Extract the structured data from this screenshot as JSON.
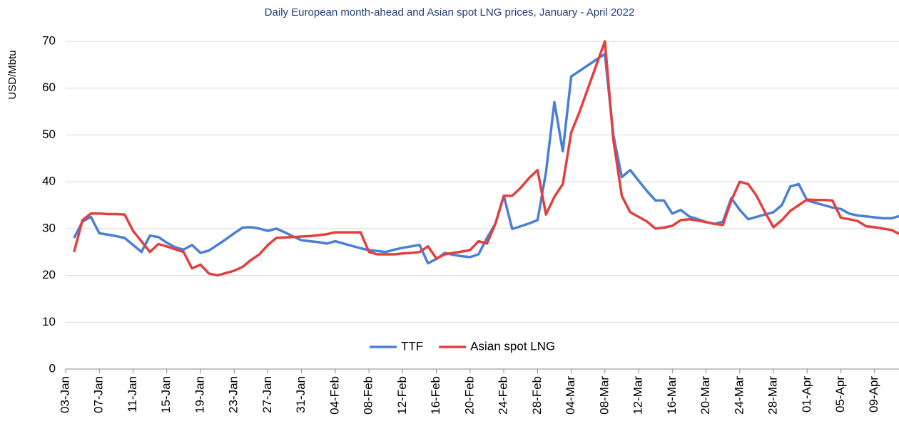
{
  "chart_data": {
    "type": "line",
    "title": "Daily European month-ahead and Asian spot LNG prices, January - April 2022",
    "y_label": "USD/Mbtu",
    "categories": [
      "03-Jan",
      null,
      null,
      null,
      "07-Jan",
      null,
      null,
      null,
      "11-Jan",
      null,
      null,
      null,
      "15-Jan",
      null,
      null,
      null,
      "19-Jan",
      null,
      null,
      null,
      "23-Jan",
      null,
      null,
      null,
      "27-Jan",
      null,
      null,
      null,
      "31-Jan",
      null,
      null,
      null,
      "04-Feb",
      null,
      null,
      null,
      "08-Feb",
      null,
      null,
      null,
      "12-Feb",
      null,
      null,
      null,
      "16-Feb",
      null,
      null,
      null,
      "20-Feb",
      null,
      null,
      null,
      "24-Feb",
      null,
      null,
      null,
      "28-Feb",
      null,
      null,
      null,
      "04-Mar",
      null,
      null,
      null,
      "08-Mar",
      null,
      null,
      null,
      "12-Mar",
      null,
      null,
      null,
      "16-Mar",
      null,
      null,
      null,
      "20-Mar",
      null,
      null,
      null,
      "24-Mar",
      null,
      null,
      null,
      "28-Mar",
      null,
      null,
      null,
      "01-Apr",
      null,
      null,
      null,
      "05-Apr",
      null,
      null,
      null,
      "09-Apr",
      null,
      null,
      null
    ],
    "series": [
      {
        "name": "TTF",
        "color": "#4a7fd6",
        "values": [
          null,
          28,
          31.5,
          32.5,
          29,
          28.7,
          28.4,
          28,
          26.5,
          25,
          28.5,
          28.2,
          27,
          26,
          25.5,
          26.5,
          24.8,
          25.3,
          26.5,
          27.7,
          29,
          30.2,
          30.3,
          30,
          29.5,
          30,
          29.2,
          28.3,
          27.5,
          27.3,
          27.1,
          26.8,
          27.3,
          26.8,
          26.3,
          25.8,
          25.4,
          25.2,
          25,
          25.5,
          25.9,
          26.2,
          26.5,
          22.6,
          23.5,
          24.8,
          24.4,
          24.1,
          23.9,
          24.5,
          28,
          31,
          37,
          29.9,
          30.5,
          31.1,
          31.8,
          42,
          57,
          46.5,
          62.5,
          63.7,
          64.9,
          66.1,
          67.3,
          50,
          41,
          42.5,
          40.2,
          38,
          36,
          36,
          33.2,
          34,
          32.6,
          32,
          31.4,
          31,
          31.5,
          36.5,
          34,
          32,
          32.5,
          33,
          33.5,
          35,
          39,
          39.5,
          36,
          35.5,
          35,
          34.5,
          34.2,
          33.2,
          32.8,
          32.6,
          32.4,
          32.2,
          32.2,
          32.7
        ]
      },
      {
        "name": "Asian spot LNG",
        "color": "#e2403f",
        "values": [
          null,
          25,
          31.8,
          33.2,
          33.2,
          33.1,
          33.1,
          33,
          29.5,
          27.3,
          25,
          26.7,
          26.2,
          25.6,
          25,
          21.5,
          22.3,
          20.4,
          20,
          20.5,
          21,
          21.8,
          23.3,
          24.5,
          26.5,
          28,
          28.1,
          28.2,
          28.3,
          28.4,
          28.6,
          28.8,
          29.2,
          29.2,
          29.2,
          29.2,
          25,
          24.5,
          24.5,
          24.5,
          24.7,
          24.8,
          25,
          26.2,
          23.6,
          24.5,
          24.8,
          25.1,
          25.4,
          27.3,
          26.8,
          31,
          37,
          37,
          38.7,
          40.8,
          42.5,
          33,
          36.8,
          39.5,
          50.5,
          55,
          60,
          65,
          70,
          49,
          37,
          33.5,
          32.5,
          31.5,
          30,
          30.2,
          30.6,
          31.8,
          32,
          31.7,
          31.4,
          31,
          30.8,
          36,
          40,
          39.5,
          37,
          33.5,
          30.3,
          31.8,
          33.8,
          35,
          36.2,
          36.1,
          36.1,
          36,
          32.3,
          32,
          31.6,
          30.5,
          30.3,
          30,
          29.7,
          28.8
        ]
      }
    ],
    "ylim": [
      0,
      70
    ],
    "yticks": [
      0,
      10,
      20,
      30,
      40,
      50,
      60,
      70
    ],
    "grid": true,
    "legend": "bottom"
  }
}
